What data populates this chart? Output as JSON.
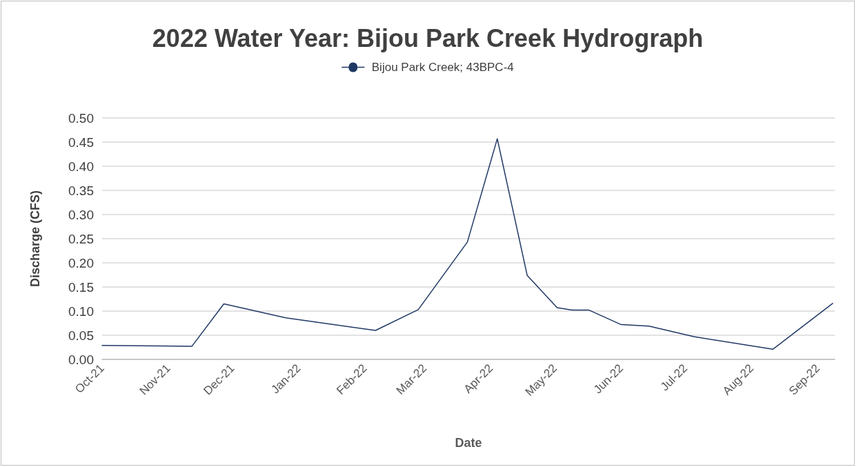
{
  "chart_data": {
    "type": "line",
    "title": "2022 Water Year: Bijou Park Creek Hydrograph",
    "xlabel": "Date",
    "ylabel": "Discharge (CFS)",
    "x": [
      "2021-10-01",
      "2021-11-12",
      "2021-11-27",
      "2021-12-26",
      "2022-02-06",
      "2022-02-26",
      "2022-03-21",
      "2022-04-04",
      "2022-04-18",
      "2022-05-02",
      "2022-05-09",
      "2022-05-17",
      "2022-06-01",
      "2022-06-14",
      "2022-07-05",
      "2022-08-11",
      "2022-09-08"
    ],
    "series": [
      {
        "name": "Bijou Park Creek; 43BPC-4",
        "color": "#1f3864",
        "values": [
          0.029,
          0.027,
          0.115,
          0.086,
          0.06,
          0.103,
          0.243,
          0.457,
          0.174,
          0.107,
          0.102,
          0.102,
          0.072,
          0.069,
          0.047,
          0.021,
          0.116
        ]
      }
    ],
    "xlim": [
      "2021-10-01",
      "2022-09-09"
    ],
    "xticks": [
      {
        "value": "2021-10-01",
        "label": "Oct-21"
      },
      {
        "value": "2021-11-01",
        "label": "Nov-21"
      },
      {
        "value": "2021-12-01",
        "label": "Dec-21"
      },
      {
        "value": "2022-01-01",
        "label": "Jan-22"
      },
      {
        "value": "2022-02-01",
        "label": "Feb-22"
      },
      {
        "value": "2022-03-01",
        "label": "Mar-22"
      },
      {
        "value": "2022-04-01",
        "label": "Apr-22"
      },
      {
        "value": "2022-05-01",
        "label": "May-22"
      },
      {
        "value": "2022-06-01",
        "label": "Jun-22"
      },
      {
        "value": "2022-07-01",
        "label": "Jul-22"
      },
      {
        "value": "2022-08-01",
        "label": "Aug-22"
      },
      {
        "value": "2022-09-01",
        "label": "Sep-22"
      }
    ],
    "ylim": [
      0,
      0.5
    ],
    "yticks": [
      {
        "value": 0,
        "label": "0.00"
      },
      {
        "value": 0.05,
        "label": "0.05"
      },
      {
        "value": 0.1,
        "label": "0.10"
      },
      {
        "value": 0.15,
        "label": "0.15"
      },
      {
        "value": 0.2,
        "label": "0.20"
      },
      {
        "value": 0.25,
        "label": "0.25"
      },
      {
        "value": 0.3,
        "label": "0.30"
      },
      {
        "value": 0.35,
        "label": "0.35"
      },
      {
        "value": 0.4,
        "label": "0.40"
      },
      {
        "value": 0.45,
        "label": "0.45"
      },
      {
        "value": 0.5,
        "label": "0.50"
      }
    ],
    "grid": "y",
    "legend": "top",
    "marker": "none",
    "line_style": "solid"
  }
}
